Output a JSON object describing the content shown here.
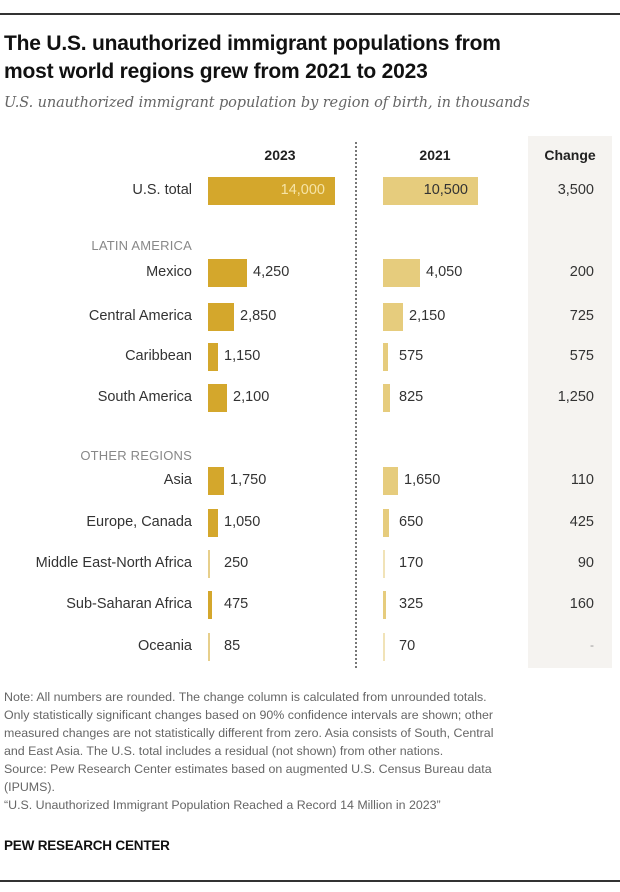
{
  "header": {
    "title_line1": "The U.S. unauthorized immigrant populations from",
    "title_line2": "most world regions grew from 2021 to 2023",
    "subtitle": "U.S. unauthorized immigrant population by region of birth, in thousands"
  },
  "colors": {
    "bar_2023": "#d4a72c",
    "bar_2021": "#e6cc7d",
    "change_column_bg": "#f5f3f0"
  },
  "chart_data": {
    "type": "bar",
    "title": "The U.S. unauthorized immigrant populations from most world regions grew from 2021 to 2023",
    "subtitle": "U.S. unauthorized immigrant population by region of birth, in thousands",
    "units": "thousands",
    "columns": [
      "2023",
      "2021",
      "Change"
    ],
    "sections": [
      {
        "name": "",
        "rows": [
          {
            "label": "U.S. total",
            "v2023": 14000,
            "v2021": 10500,
            "d2023": "14,000",
            "d2021": "10,500",
            "change": "3,500"
          }
        ]
      },
      {
        "name": "LATIN AMERICA",
        "rows": [
          {
            "label": "Mexico",
            "v2023": 4250,
            "v2021": 4050,
            "d2023": "4,250",
            "d2021": "4,050",
            "change": "200"
          },
          {
            "label": "Central America",
            "v2023": 2850,
            "v2021": 2150,
            "d2023": "2,850",
            "d2021": "2,150",
            "change": "725"
          },
          {
            "label": "Caribbean",
            "v2023": 1150,
            "v2021": 575,
            "d2023": "1,150",
            "d2021": "575",
            "change": "575"
          },
          {
            "label": "South America",
            "v2023": 2100,
            "v2021": 825,
            "d2023": "2,100",
            "d2021": "825",
            "change": "1,250"
          }
        ]
      },
      {
        "name": "OTHER REGIONS",
        "rows": [
          {
            "label": "Asia",
            "v2023": 1750,
            "v2021": 1650,
            "d2023": "1,750",
            "d2021": "1,650",
            "change": "110"
          },
          {
            "label": "Europe, Canada",
            "v2023": 1050,
            "v2021": 650,
            "d2023": "1,050",
            "d2021": "650",
            "change": "425"
          },
          {
            "label": "Middle East-North Africa",
            "v2023": 250,
            "v2021": 170,
            "d2023": "250",
            "d2021": "170",
            "change": "90"
          },
          {
            "label": "Sub-Saharan Africa",
            "v2023": 475,
            "v2021": 325,
            "d2023": "475",
            "d2021": "325",
            "change": "160"
          },
          {
            "label": "Oceania",
            "v2023": 85,
            "v2021": 70,
            "d2023": "85",
            "d2021": "70",
            "change": "-"
          }
        ]
      }
    ],
    "xlim": [
      0,
      14000
    ],
    "grid": false,
    "legend": "none"
  },
  "footer": {
    "notes": [
      "Note: All numbers are rounded. The change column is calculated from unrounded totals.",
      "Only statistically significant changes based on 90% confidence intervals are shown; other",
      "measured changes are not statistically different from zero. Asia consists of South, Central",
      "and East Asia. The U.S. total includes a residual (not shown) from other nations.",
      "Source: Pew Research Center estimates based on augmented U.S. Census Bureau data",
      "(IPUMS).",
      "“U.S. Unauthorized Immigrant Population Reached a Record 14 Million in 2023”"
    ],
    "brand": "PEW RESEARCH CENTER"
  }
}
